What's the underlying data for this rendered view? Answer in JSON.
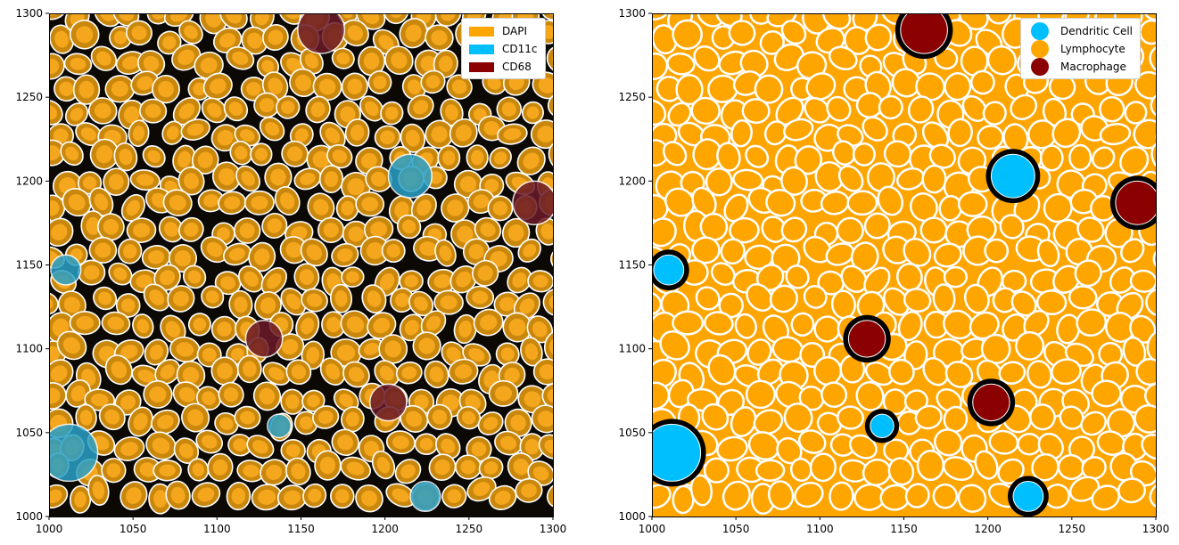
{
  "chart_data": [
    {
      "type": "image",
      "x_ticks": [
        "1000",
        "1050",
        "1100",
        "1150",
        "1200",
        "1250",
        "1300"
      ],
      "y_ticks": [
        "1300",
        "1250",
        "1200",
        "1150",
        "1100",
        "1050",
        "1000"
      ],
      "xlim": [
        1000,
        1300
      ],
      "ylim": [
        1000,
        1300
      ],
      "legend": [
        {
          "label": "DAPI",
          "color": "#ffa500"
        },
        {
          "label": "CD11c",
          "color": "#00bfff"
        },
        {
          "label": "CD68",
          "color": "#8b0000"
        }
      ],
      "legend_position": "top-right",
      "content": "multiplex fluorescence image with white cell segmentation outlines"
    },
    {
      "type": "image",
      "x_ticks": [
        "1000",
        "1050",
        "1100",
        "1150",
        "1200",
        "1250",
        "1300"
      ],
      "y_ticks": [
        "1300",
        "1250",
        "1200",
        "1150",
        "1100",
        "1050",
        "1000"
      ],
      "xlim": [
        1000,
        1300
      ],
      "ylim": [
        1000,
        1300
      ],
      "legend": [
        {
          "label": "Dendritic Cell",
          "color": "#00bfff"
        },
        {
          "label": "Lymphocyte",
          "color": "#ffa500"
        },
        {
          "label": "Macrophage",
          "color": "#8b0000"
        }
      ],
      "legend_position": "top-right",
      "content": "cell-type segmentation map"
    }
  ]
}
